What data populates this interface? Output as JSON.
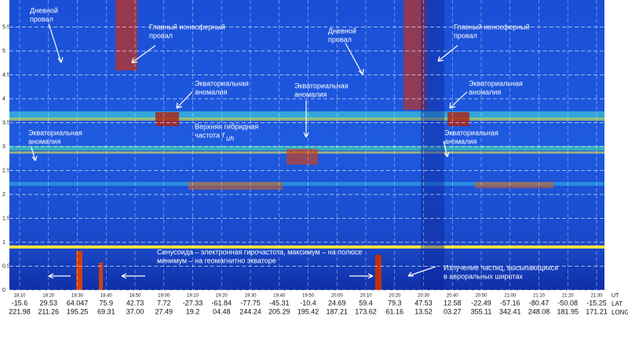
{
  "chart_data": {
    "type": "spectrogram",
    "ylim": [
      0,
      6
    ],
    "yticks": [
      0,
      0.5,
      1,
      1.5,
      2,
      2.5,
      3,
      3.5,
      4,
      4.5,
      5,
      5.5
    ],
    "grid": true,
    "row_labels": [
      "UT",
      "LAT",
      "LONG"
    ],
    "times": [
      "18:10",
      "18:20",
      "18:30",
      "18:40",
      "18:50",
      "19:00",
      "19:10",
      "19:20",
      "19:30",
      "19:40",
      "19:50",
      "20:00",
      "20:10",
      "20:20",
      "20:30",
      "20:40",
      "20:50",
      "21:00",
      "21:10",
      "21:20",
      "21:30"
    ],
    "lat": [
      "-15.6",
      "29.53",
      "64.047",
      "75.9",
      "42.73",
      "7.72",
      "-27.33",
      "-61.84",
      "-77.75",
      "-45.31",
      "-10.4",
      "24.69",
      "59.4",
      "79.3",
      "47.53",
      "12.58",
      "-22.49",
      "-57.16",
      "-80.47",
      "-50.08",
      "-15.25"
    ],
    "long": [
      "221.98",
      "211.26",
      "195.25",
      "69.31",
      "37.00",
      "27.49",
      "19.2",
      "04.48",
      "244.24",
      "205.29",
      "195.42",
      "187.21",
      "173.62",
      "61.16",
      "13.52",
      "03.27",
      "355.11",
      "342.41",
      "248.08",
      "181.95",
      "171.21"
    ],
    "annotations": [
      {
        "lines": [
          "Дневной",
          "провал"
        ]
      },
      {
        "lines": [
          "Главный ионосферный",
          "провал"
        ]
      },
      {
        "lines": [
          "Экваториальная",
          "аномалия"
        ]
      },
      {
        "lines": [
          "Экваториальная",
          "аномалия"
        ]
      },
      {
        "lines": [
          "Верхняя гибридная",
          "частота"
        ],
        "symbol": "f",
        "subscript": "uh"
      },
      {
        "lines": [
          "Экваториальная",
          "аномалия"
        ]
      },
      {
        "lines": [
          "Дневной",
          "провал"
        ]
      },
      {
        "lines": [
          "Главный ионосферный",
          "провал"
        ]
      },
      {
        "lines": [
          "Экваториальная",
          "аномалия"
        ]
      },
      {
        "lines": [
          "Экваториальная",
          "аномалия"
        ]
      },
      {
        "lines": [
          "Синусоида – электронная гирочастота, максимум – на полюсе",
          "минимум – на геомагнитно экваторе"
        ]
      },
      {
        "lines": [
          "Излучение частиц, высыпающихся",
          "в авроральных широтах"
        ]
      }
    ]
  }
}
